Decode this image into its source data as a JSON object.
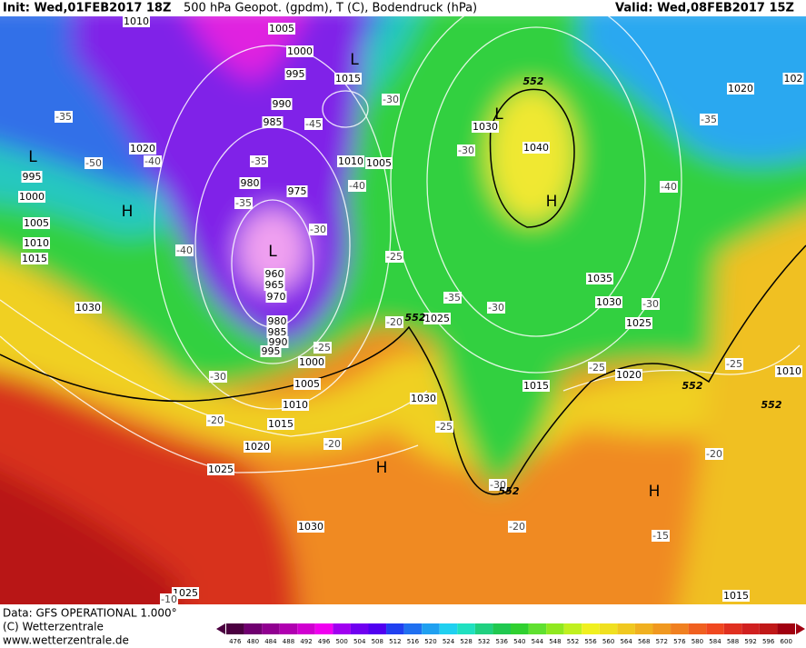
{
  "header": {
    "init": "Init: Wed,01FEB2017 18Z",
    "title": "500 hPa Geopot. (gpdm), T (C), Bodendruck (hPa)",
    "valid": "Valid: Wed,08FEB2017 15Z"
  },
  "map": {
    "isobar_labels": [
      "1010",
      "1005",
      "1000",
      "995",
      "990",
      "985",
      "980",
      "975",
      "960",
      "965",
      "970",
      "980",
      "985",
      "990",
      "995",
      "1000",
      "1005",
      "1010",
      "1015",
      "1020",
      "1025",
      "1030",
      "1030",
      "1030",
      "1025",
      "1015",
      "1015",
      "1020",
      "1025",
      "1030",
      "1035",
      "1040",
      "1030",
      "1015",
      "1010",
      "1005",
      "1020",
      "995",
      "1000",
      "1005",
      "1010",
      "1015",
      "1020",
      "102",
      "1010",
      "1025"
    ],
    "temperature_labels": [
      "-35",
      "-50",
      "-40",
      "-35",
      "-35",
      "-45",
      "-30",
      "-40",
      "-30",
      "-40",
      "-25",
      "-35",
      "-30",
      "-30",
      "-35",
      "-40",
      "-30",
      "-25",
      "-25",
      "-20",
      "-25",
      "-30",
      "-20",
      "-20",
      "-25",
      "-30",
      "-20",
      "-20",
      "-15",
      "-10"
    ],
    "height_labels": [
      "552",
      "552",
      "552",
      "552",
      "552"
    ],
    "pressure_systems": [
      "L",
      "H",
      "L",
      "L",
      "L",
      "H",
      "H",
      "H"
    ]
  },
  "footer": {
    "data": "Data: GFS OPERATIONAL 1.000°",
    "copyright": "(C) Wetterzentrale",
    "url": "www.wetterzentrale.de"
  },
  "scale": {
    "labels": [
      476,
      480,
      484,
      488,
      492,
      496,
      500,
      504,
      508,
      512,
      516,
      520,
      524,
      528,
      532,
      536,
      540,
      544,
      548,
      552,
      556,
      560,
      564,
      568,
      572,
      576,
      580,
      584,
      588,
      592,
      596,
      600
    ],
    "colors": [
      "#4b0040",
      "#700070",
      "#900090",
      "#b000b0",
      "#d000d0",
      "#f000f0",
      "#a000f0",
      "#7000f0",
      "#5000f0",
      "#2040f0",
      "#2070f0",
      "#20a0f0",
      "#20d0f0",
      "#20e0c0",
      "#20d080",
      "#20c850",
      "#30d030",
      "#60e030",
      "#90e820",
      "#c0f020",
      "#f0f020",
      "#f0e020",
      "#f0c820",
      "#f0b020",
      "#f09820",
      "#f08020",
      "#f06020",
      "#f04820",
      "#e03020",
      "#d02020",
      "#c01818",
      "#a00010"
    ]
  }
}
